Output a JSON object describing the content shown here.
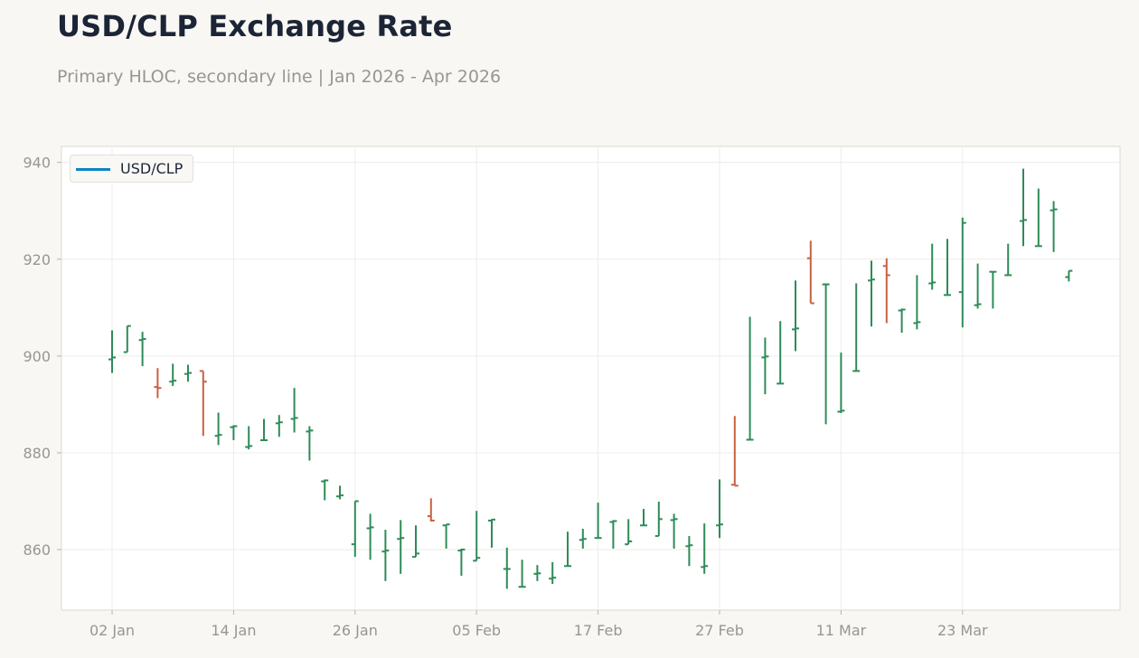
{
  "header": {
    "title": "USD/CLP Exchange Rate",
    "subtitle": "Primary HLOC, secondary line | Jan 2026 - Apr 2026"
  },
  "legend": {
    "label": "USD/CLP",
    "color": "#0a84c6"
  },
  "colors": {
    "up": "#2e8b57",
    "down": "#c8613f",
    "grid": "#eeece8",
    "axis": "#ddd8d0",
    "plot_bg": "#ffffff"
  },
  "chart_data": {
    "type": "ohlc",
    "title": "USD/CLP Exchange Rate",
    "subtitle": "Primary HLOC, secondary line | Jan 2026 - Apr 2026",
    "xlabel": "",
    "ylabel": "",
    "ylim": [
      847.5,
      943.3
    ],
    "yticks": [
      860,
      880,
      900,
      920,
      940
    ],
    "xtick_labels": [
      {
        "index": 0,
        "label": "02 Jan"
      },
      {
        "index": 8,
        "label": "14 Jan"
      },
      {
        "index": 16,
        "label": "26 Jan"
      },
      {
        "index": 24,
        "label": "05 Feb"
      },
      {
        "index": 32,
        "label": "17 Feb"
      },
      {
        "index": 40,
        "label": "27 Feb"
      },
      {
        "index": 48,
        "label": "11 Mar"
      },
      {
        "index": 56,
        "label": "23 Mar"
      }
    ],
    "grid": true,
    "legend_position": "upper left",
    "series": [
      {
        "name": "USD/CLP",
        "dates": [
          "2026-01-02",
          "2026-01-05",
          "2026-01-06",
          "2026-01-07",
          "2026-01-08",
          "2026-01-09",
          "2026-01-12",
          "2026-01-13",
          "2026-01-14",
          "2026-01-15",
          "2026-01-16",
          "2026-01-19",
          "2026-01-20",
          "2026-01-21",
          "2026-01-22",
          "2026-01-23",
          "2026-01-26",
          "2026-01-27",
          "2026-01-28",
          "2026-01-29",
          "2026-01-30",
          "2026-02-02",
          "2026-02-03",
          "2026-02-04",
          "2026-02-05",
          "2026-02-06",
          "2026-02-09",
          "2026-02-10",
          "2026-02-11",
          "2026-02-12",
          "2026-02-13",
          "2026-02-16",
          "2026-02-17",
          "2026-02-18",
          "2026-02-19",
          "2026-02-20",
          "2026-02-23",
          "2026-02-24",
          "2026-02-25",
          "2026-02-26",
          "2026-02-27",
          "2026-03-02",
          "2026-03-03",
          "2026-03-04",
          "2026-03-05",
          "2026-03-06",
          "2026-03-09",
          "2026-03-10",
          "2026-03-11",
          "2026-03-12",
          "2026-03-13",
          "2026-03-16",
          "2026-03-17",
          "2026-03-18",
          "2026-03-19",
          "2026-03-20",
          "2026-03-23",
          "2026-03-24",
          "2026-03-25",
          "2026-03-26",
          "2026-03-27",
          "2026-03-30",
          "2026-03-31",
          "2026-04-01"
        ],
        "open": [
          899.3,
          900.8,
          903.3,
          893.6,
          894.7,
          896.3,
          896.9,
          883.5,
          885.3,
          881.2,
          882.6,
          886.1,
          887.0,
          884.4,
          874.1,
          871.0,
          861.1,
          864.4,
          859.6,
          862.2,
          858.5,
          866.9,
          865.0,
          859.8,
          857.7,
          866.0,
          856.0,
          852.3,
          855.0,
          854.0,
          856.6,
          862.0,
          862.4,
          865.7,
          861.1,
          865.0,
          862.8,
          866.1,
          860.7,
          856.4,
          865.0,
          873.4,
          882.7,
          899.7,
          894.3,
          905.5,
          920.2,
          914.8,
          888.5,
          896.9,
          915.6,
          918.6,
          909.4,
          906.8,
          915.0,
          912.6,
          913.2,
          910.5,
          917.4,
          916.7,
          927.9,
          922.7,
          930.1,
          916.3
        ],
        "high": [
          905.3,
          906.2,
          905.0,
          897.5,
          898.4,
          898.2,
          896.9,
          888.3,
          885.7,
          885.5,
          887.0,
          887.8,
          893.4,
          885.5,
          874.5,
          873.2,
          870.0,
          867.4,
          864.1,
          866.1,
          865.0,
          870.6,
          865.2,
          860.2,
          868.0,
          866.3,
          860.4,
          857.9,
          856.8,
          857.4,
          863.7,
          864.3,
          869.7,
          866.1,
          866.3,
          868.4,
          869.9,
          867.4,
          862.8,
          865.4,
          874.5,
          887.6,
          908.1,
          903.8,
          907.2,
          915.6,
          923.8,
          915.0,
          900.7,
          915.0,
          919.7,
          920.2,
          909.8,
          916.7,
          923.2,
          924.2,
          928.6,
          919.1,
          917.4,
          923.2,
          938.7,
          934.6,
          932.0,
          917.6
        ],
        "low": [
          896.5,
          900.8,
          897.9,
          891.3,
          893.8,
          894.7,
          883.5,
          881.6,
          882.6,
          880.7,
          882.6,
          883.3,
          884.2,
          878.4,
          870.2,
          870.4,
          858.5,
          857.9,
          853.5,
          855.0,
          858.5,
          865.8,
          860.2,
          854.6,
          857.7,
          860.4,
          851.9,
          852.3,
          853.5,
          852.9,
          856.6,
          860.2,
          862.4,
          860.2,
          861.1,
          865.0,
          862.8,
          860.2,
          856.6,
          855.0,
          862.4,
          873.2,
          882.7,
          892.1,
          894.3,
          901.0,
          911.7,
          885.9,
          888.2,
          896.9,
          906.1,
          906.8,
          904.8,
          905.5,
          913.7,
          912.6,
          905.9,
          909.8,
          909.8,
          916.7,
          922.7,
          922.7,
          921.5,
          915.4
        ],
        "close": [
          899.7,
          906.2,
          903.5,
          893.4,
          894.9,
          896.5,
          894.7,
          883.7,
          885.5,
          881.4,
          882.6,
          886.3,
          887.2,
          884.6,
          874.3,
          871.2,
          870.0,
          864.6,
          859.8,
          862.4,
          859.2,
          866.0,
          865.2,
          860.0,
          858.3,
          866.2,
          856.0,
          852.3,
          855.1,
          854.2,
          856.6,
          862.2,
          862.4,
          865.9,
          861.7,
          865.0,
          866.3,
          866.3,
          860.9,
          856.6,
          865.2,
          873.2,
          882.7,
          899.9,
          894.3,
          905.7,
          910.9,
          914.8,
          888.7,
          896.9,
          915.8,
          916.7,
          909.6,
          907.0,
          915.2,
          912.6,
          927.5,
          910.7,
          917.4,
          916.7,
          928.1,
          922.7,
          930.3,
          917.6
        ]
      }
    ]
  }
}
